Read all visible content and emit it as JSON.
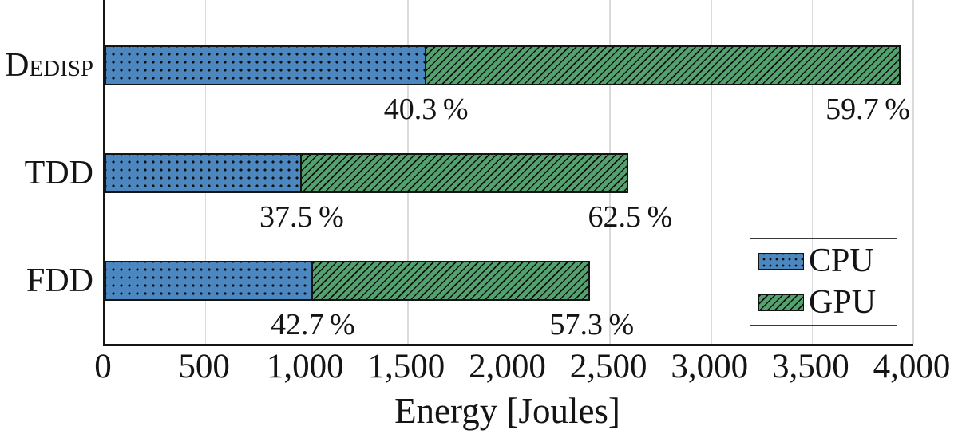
{
  "chart_data": {
    "type": "bar",
    "orientation": "horizontal-stacked",
    "title": "",
    "categories": [
      "Dedisp",
      "TDD",
      "FDD"
    ],
    "series": [
      {
        "name": "CPU",
        "values": [
          1590,
          975,
          1030
        ],
        "color": "#4c87bf",
        "pattern": "dots"
      },
      {
        "name": "GPU",
        "values": [
          2355,
          1625,
          1380
        ],
        "color": "#53a16f",
        "pattern": "diagonal-hatch"
      }
    ],
    "totals": [
      3945,
      2600,
      2410
    ],
    "percent_labels": [
      {
        "cpu": "40.3 %",
        "gpu": "59.7 %"
      },
      {
        "cpu": "37.5 %",
        "gpu": "62.5 %"
      },
      {
        "cpu": "42.7 %",
        "gpu": "57.3 %"
      }
    ],
    "xlabel": "Energy [Joules]",
    "ylabel": "",
    "xlim": [
      0,
      4000
    ],
    "xticks": [
      0,
      500,
      1000,
      1500,
      2000,
      2500,
      3000,
      3500,
      4000
    ],
    "xtick_labels": [
      "0",
      "500",
      "1,000",
      "1,500",
      "2,000",
      "2,500",
      "3,000",
      "3,500",
      "4,000"
    ],
    "grid": "vertical",
    "legend": {
      "position": "bottom-right",
      "entries": [
        "CPU",
        "GPU"
      ]
    }
  },
  "colors": {
    "cpu_blue": "#4c87bf",
    "gpu_green": "#53a16f",
    "gridline": "#dadada",
    "axis": "#141414",
    "text": "#141414"
  }
}
